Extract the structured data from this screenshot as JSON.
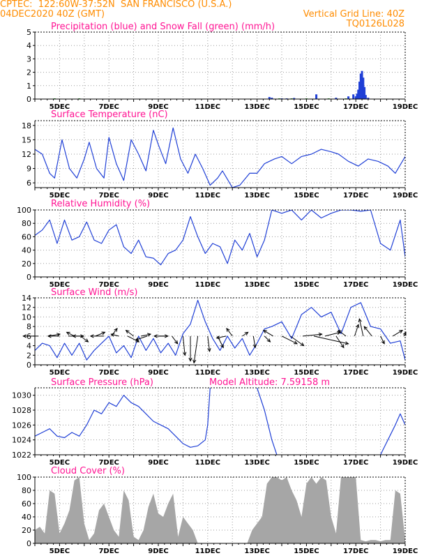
{
  "header": {
    "line1": "CPTEC:  122:60W-37:52N  SAN FRANCISCO (U.S.A.)",
    "line2": "04DEC2020 40Z (GMT)",
    "grid_note": "Vertical Grid Line: 40Z",
    "code": "TQ0126L028"
  },
  "colors": {
    "header": "#ff8c00",
    "title": "#ff1493",
    "line": "#1f3fd6",
    "precip": "#1f3fd6",
    "snow": "#2ca02c",
    "cloud": "#a6a6a6",
    "grid": "#9a9a9a"
  },
  "chart_data": [
    {
      "type": "bar",
      "title": "Precipitation (blue) and Snow Fall (green) (mm/h)",
      "ylim": [
        0,
        5
      ],
      "yticks": [
        0,
        1,
        2,
        3,
        4,
        5
      ],
      "xticks": [
        "5DEC",
        "7DEC",
        "9DEC",
        "11DEC",
        "13DEC",
        "15DEC",
        "17DEC",
        "19DEC"
      ],
      "series": [
        {
          "name": "Precipitation",
          "x": [
            13.5,
            13.6,
            14.0,
            14.2,
            14.5,
            15.4,
            16.2,
            16.7,
            16.9,
            17.0,
            17.05,
            17.1,
            17.15,
            17.2,
            17.25,
            17.3,
            17.35,
            17.4,
            17.5
          ],
          "values": [
            0.15,
            0.1,
            0.05,
            0.05,
            0.08,
            0.35,
            0.1,
            0.2,
            0.35,
            0.2,
            0.4,
            0.7,
            1.3,
            1.9,
            2.1,
            1.6,
            0.9,
            0.3,
            0.1
          ]
        },
        {
          "name": "Snow Fall",
          "x": [
            4.8,
            5.8,
            13.9,
            14.4,
            15.0,
            15.9,
            16.6
          ],
          "values": [
            0.05,
            0.05,
            0.05,
            0.05,
            0.05,
            0.05,
            0.05
          ]
        }
      ]
    },
    {
      "type": "line",
      "title": "Surface Temperature (nC)",
      "ylim": [
        5,
        19
      ],
      "yticks": [
        6,
        9,
        12,
        15,
        18
      ],
      "xticks": [
        "5DEC",
        "7DEC",
        "9DEC",
        "11DEC",
        "13DEC",
        "15DEC",
        "17DEC",
        "19DEC"
      ],
      "x": [
        4.0,
        4.3,
        4.6,
        4.8,
        5.1,
        5.4,
        5.7,
        6.0,
        6.2,
        6.5,
        6.8,
        7.0,
        7.3,
        7.6,
        7.9,
        8.2,
        8.5,
        8.8,
        9.0,
        9.3,
        9.6,
        9.9,
        10.2,
        10.5,
        10.8,
        11.1,
        11.4,
        11.6,
        12.0,
        12.3,
        12.7,
        13.0,
        13.3,
        13.7,
        14.0,
        14.4,
        14.8,
        15.2,
        15.6,
        16.0,
        16.3,
        16.7,
        17.1,
        17.5,
        17.9,
        18.3,
        18.6,
        19.0
      ],
      "values": [
        13.0,
        12.0,
        8.0,
        7.0,
        15.0,
        9.0,
        7.0,
        11.0,
        14.5,
        9.0,
        7.0,
        15.5,
        10.0,
        6.5,
        15.0,
        12.0,
        8.5,
        17.0,
        14.0,
        10.0,
        17.5,
        11.0,
        8.0,
        12.0,
        9.0,
        5.5,
        7.0,
        8.5,
        5.0,
        5.5,
        8.0,
        8.0,
        10.0,
        11.0,
        11.5,
        10.0,
        11.5,
        12.0,
        13.0,
        12.5,
        12.0,
        10.5,
        9.5,
        11.0,
        10.5,
        9.5,
        8.0,
        11.5
      ]
    },
    {
      "type": "line",
      "title": "Relative Humidity (%)",
      "ylim": [
        0,
        100
      ],
      "yticks": [
        0,
        20,
        40,
        60,
        80,
        100
      ],
      "xticks": [
        "5DEC",
        "7DEC",
        "9DEC",
        "11DEC",
        "13DEC",
        "15DEC",
        "17DEC",
        "19DEC"
      ],
      "x": [
        4.0,
        4.3,
        4.6,
        4.9,
        5.2,
        5.5,
        5.8,
        6.1,
        6.4,
        6.7,
        7.0,
        7.3,
        7.6,
        7.9,
        8.2,
        8.5,
        8.8,
        9.1,
        9.4,
        9.7,
        10.0,
        10.3,
        10.6,
        10.9,
        11.2,
        11.5,
        11.8,
        12.1,
        12.4,
        12.7,
        13.0,
        13.3,
        13.6,
        14.0,
        14.4,
        14.8,
        15.2,
        15.6,
        16.0,
        16.4,
        16.8,
        17.2,
        17.6,
        18.0,
        18.4,
        18.8,
        19.0
      ],
      "values": [
        62,
        70,
        85,
        50,
        85,
        55,
        60,
        82,
        55,
        50,
        70,
        78,
        45,
        35,
        55,
        30,
        28,
        18,
        35,
        40,
        55,
        90,
        60,
        35,
        50,
        45,
        20,
        55,
        40,
        65,
        30,
        55,
        100,
        95,
        100,
        85,
        100,
        88,
        95,
        100,
        100,
        98,
        100,
        50,
        40,
        85,
        30
      ]
    },
    {
      "type": "line",
      "title": "Surface Wind (m/s)",
      "ylim": [
        0,
        14
      ],
      "yticks": [
        0,
        2,
        4,
        6,
        8,
        10,
        12,
        14
      ],
      "xticks": [
        "5DEC",
        "7DEC",
        "9DEC",
        "11DEC",
        "13DEC",
        "15DEC",
        "17DEC",
        "19DEC"
      ],
      "x": [
        4.0,
        4.3,
        4.6,
        4.9,
        5.2,
        5.5,
        5.8,
        6.1,
        6.4,
        6.7,
        7.0,
        7.3,
        7.6,
        7.9,
        8.2,
        8.5,
        8.8,
        9.1,
        9.4,
        9.7,
        10.0,
        10.3,
        10.6,
        10.9,
        11.2,
        11.5,
        11.8,
        12.1,
        12.4,
        12.7,
        13.0,
        13.3,
        13.6,
        14.0,
        14.4,
        14.8,
        15.2,
        15.6,
        16.0,
        16.4,
        16.8,
        17.2,
        17.6,
        18.0,
        18.4,
        18.8,
        19.0
      ],
      "values": [
        3.0,
        4.5,
        4.0,
        1.5,
        4.5,
        2.0,
        4.5,
        1.0,
        3.0,
        4.5,
        6.0,
        2.5,
        4.0,
        1.5,
        6.0,
        3.0,
        5.5,
        2.5,
        4.5,
        2.0,
        6.5,
        8.5,
        13.5,
        9.0,
        5.5,
        3.0,
        6.0,
        3.5,
        5.5,
        2.0,
        4.5,
        7.5,
        8.0,
        9.0,
        5.5,
        10.5,
        12.0,
        10.0,
        11.0,
        6.5,
        12.0,
        13.0,
        8.0,
        7.5,
        4.5,
        5.0,
        1.0
      ]
    },
    {
      "type": "line",
      "title": "Surface Pressure (hPa)",
      "annotation": "Model Altitude: 7.59158 m",
      "ylim": [
        1022,
        1031
      ],
      "yticks": [
        1022,
        1024,
        1026,
        1028,
        1030
      ],
      "xticks": [
        "5DEC",
        "7DEC",
        "9DEC",
        "11DEC",
        "13DEC",
        "15DEC",
        "17DEC",
        "19DEC"
      ],
      "x": [
        4.0,
        4.3,
        4.6,
        4.9,
        5.2,
        5.5,
        5.8,
        6.1,
        6.4,
        6.7,
        7.0,
        7.3,
        7.6,
        7.9,
        8.2,
        8.5,
        8.8,
        9.1,
        9.4,
        9.7,
        10.0,
        10.3,
        10.6,
        10.9,
        11.0,
        11.1,
        null,
        13.0,
        13.3,
        13.6,
        13.8,
        null,
        18.0,
        18.3,
        18.6,
        18.8,
        19.0
      ],
      "values": [
        1024.5,
        1025.0,
        1025.5,
        1024.5,
        1024.3,
        1025.0,
        1024.5,
        1026.0,
        1028.0,
        1027.5,
        1029.0,
        1028.5,
        1030.0,
        1029.0,
        1028.5,
        1027.5,
        1026.5,
        1026.0,
        1025.5,
        1024.5,
        1023.5,
        1023.0,
        1023.2,
        1024.0,
        1026.0,
        1031.0,
        null,
        1031.0,
        1028.0,
        1024.0,
        1022.0,
        null,
        1022.0,
        1024.0,
        1026.0,
        1027.5,
        1026.0
      ]
    },
    {
      "type": "area",
      "title": "Cloud Cover (%)",
      "ylim": [
        0,
        100
      ],
      "yticks": [
        0,
        20,
        40,
        60,
        80,
        100
      ],
      "xticks": [
        "5DEC",
        "7DEC",
        "9DEC",
        "11DEC",
        "13DEC",
        "15DEC",
        "17DEC",
        "19DEC"
      ],
      "x": [
        4.0,
        4.2,
        4.4,
        4.6,
        4.8,
        5.0,
        5.2,
        5.4,
        5.6,
        5.8,
        6.0,
        6.2,
        6.4,
        6.6,
        6.8,
        7.0,
        7.2,
        7.4,
        7.6,
        7.8,
        8.0,
        8.2,
        8.4,
        8.6,
        8.8,
        9.0,
        9.2,
        9.4,
        9.6,
        9.8,
        10.0,
        10.2,
        10.4,
        10.6,
        10.8,
        11.0,
        11.2,
        11.4,
        11.6,
        11.8,
        12.0,
        12.2,
        12.4,
        12.6,
        12.8,
        13.0,
        13.2,
        13.4,
        13.6,
        13.8,
        14.0,
        14.2,
        14.4,
        14.6,
        14.8,
        15.0,
        15.2,
        15.4,
        15.6,
        15.8,
        16.0,
        16.2,
        16.4,
        16.6,
        16.8,
        17.0,
        17.2,
        17.4,
        17.6,
        17.8,
        18.0,
        18.2,
        18.4,
        18.6,
        18.8,
        19.0
      ],
      "values": [
        20,
        25,
        15,
        80,
        75,
        15,
        30,
        50,
        95,
        100,
        30,
        5,
        15,
        50,
        60,
        40,
        20,
        10,
        80,
        65,
        10,
        5,
        20,
        55,
        75,
        45,
        40,
        60,
        75,
        10,
        40,
        30,
        20,
        0,
        0,
        0,
        0,
        0,
        0,
        0,
        0,
        0,
        0,
        0,
        20,
        30,
        40,
        90,
        100,
        100,
        95,
        100,
        80,
        65,
        40,
        90,
        100,
        90,
        100,
        95,
        40,
        15,
        100,
        100,
        100,
        100,
        5,
        3,
        5,
        5,
        3,
        5,
        5,
        80,
        75,
        5
      ]
    }
  ],
  "wind_arrows": [
    {
      "x": 4.15,
      "u": -4.0,
      "v": 0.0
    },
    {
      "x": 4.55,
      "u": 3.0,
      "v": 0.5
    },
    {
      "x": 5.0,
      "u": -3.0,
      "v": 0.0
    },
    {
      "x": 5.35,
      "u": 4.0,
      "v": 0.0
    },
    {
      "x": 5.6,
      "u": -2.0,
      "v": 1.0
    },
    {
      "x": 5.85,
      "u": 2.0,
      "v": -1.5
    },
    {
      "x": 6.0,
      "u": -3.0,
      "v": 0.0
    },
    {
      "x": 6.45,
      "u": 2.5,
      "v": 1.0
    },
    {
      "x": 6.8,
      "u": -3.5,
      "v": 0.0
    },
    {
      "x": 7.1,
      "u": 1.5,
      "v": 2.0
    },
    {
      "x": 7.4,
      "u": -2.0,
      "v": 0.5
    },
    {
      "x": 7.75,
      "u": 3.0,
      "v": -1.5
    },
    {
      "x": 8.0,
      "u": -2.0,
      "v": 1.5
    },
    {
      "x": 8.3,
      "u": 2.5,
      "v": 0.5
    },
    {
      "x": 8.55,
      "u": -3.0,
      "v": -1.0
    },
    {
      "x": 9.0,
      "u": 2.5,
      "v": 0.0
    },
    {
      "x": 9.3,
      "u": -3.0,
      "v": 0.0
    },
    {
      "x": 9.55,
      "u": 1.5,
      "v": -2.0
    },
    {
      "x": 10.0,
      "u": 0.5,
      "v": -5.0
    },
    {
      "x": 10.3,
      "u": 0.0,
      "v": -6.5
    },
    {
      "x": 10.6,
      "u": -1.0,
      "v": -7.0
    },
    {
      "x": 11.0,
      "u": 0.5,
      "v": -4.0
    },
    {
      "x": 11.4,
      "u": 1.5,
      "v": -3.0
    },
    {
      "x": 11.75,
      "u": -2.5,
      "v": -0.5
    },
    {
      "x": 12.0,
      "u": -1.5,
      "v": 2.0
    },
    {
      "x": 12.4,
      "u": 1.5,
      "v": 1.0
    },
    {
      "x": 12.85,
      "u": 0.5,
      "v": -3.0
    },
    {
      "x": 13.3,
      "u": 1.5,
      "v": -1.5
    },
    {
      "x": 13.65,
      "u": -2.5,
      "v": 1.5
    },
    {
      "x": 14.0,
      "u": 4.0,
      "v": -2.0
    },
    {
      "x": 14.35,
      "u": 3.5,
      "v": -2.5
    },
    {
      "x": 14.85,
      "u": 5.0,
      "v": 0.5
    },
    {
      "x": 15.3,
      "u": 9.0,
      "v": -2.0
    },
    {
      "x": 15.75,
      "u": 4.0,
      "v": 1.0
    },
    {
      "x": 16.2,
      "u": 2.0,
      "v": -3.0
    },
    {
      "x": 16.6,
      "u": -2.0,
      "v": 1.5
    },
    {
      "x": 16.95,
      "u": 1.0,
      "v": 3.0
    },
    {
      "x": 17.3,
      "u": -1.0,
      "v": 4.5
    },
    {
      "x": 17.65,
      "u": -2.0,
      "v": 2.5
    },
    {
      "x": 18.0,
      "u": 1.0,
      "v": -2.0
    },
    {
      "x": 18.5,
      "u": 2.5,
      "v": 1.5
    },
    {
      "x": 18.95,
      "u": 0.5,
      "v": 1.0
    }
  ]
}
